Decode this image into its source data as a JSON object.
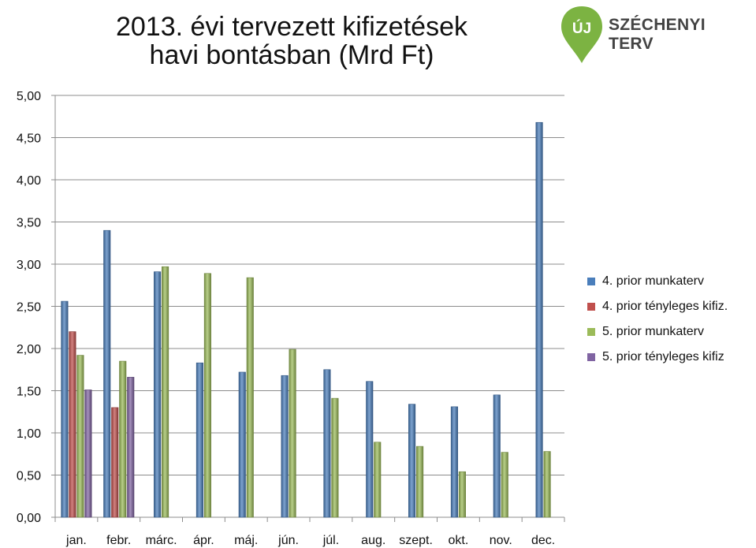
{
  "title_line1": "2013. évi tervezett kifizetések",
  "title_line2": "havi bontásban (Mrd Ft)",
  "logo": {
    "mark": "ÚJ",
    "text": "SZÉCHENYI TERV",
    "color": "#7cb342"
  },
  "chart_data": {
    "type": "bar",
    "categories": [
      "jan.",
      "febr.",
      "márc.",
      "ápr.",
      "máj.",
      "jún.",
      "júl.",
      "aug.",
      "szept.",
      "okt.",
      "nov.",
      "dec."
    ],
    "series": [
      {
        "name": "4. prior munkaterv",
        "color": "#4a7ebb",
        "values": [
          2.56,
          3.4,
          2.91,
          1.83,
          1.72,
          1.68,
          1.75,
          1.61,
          1.34,
          1.31,
          1.45,
          4.68
        ]
      },
      {
        "name": "4. prior tényleges kifiz.",
        "color": "#c0504d",
        "values": [
          2.2,
          1.3,
          null,
          null,
          null,
          null,
          null,
          null,
          null,
          null,
          null,
          null
        ]
      },
      {
        "name": "5. prior munkaterv",
        "color": "#9bbb59",
        "values": [
          1.92,
          1.85,
          2.97,
          2.89,
          2.84,
          1.99,
          1.41,
          0.89,
          0.84,
          0.54,
          0.77,
          0.78
        ]
      },
      {
        "name": "5. prior tényleges kifiz",
        "color": "#8064a2",
        "values": [
          1.51,
          1.66,
          null,
          null,
          null,
          null,
          null,
          null,
          null,
          null,
          null,
          null
        ]
      }
    ],
    "yticks": [
      "0,00",
      "0,50",
      "1,00",
      "1,50",
      "2,00",
      "2,50",
      "3,00",
      "3,50",
      "4,00",
      "4,50",
      "5,00"
    ],
    "ylim": [
      0,
      5
    ],
    "grid": true,
    "legend_position": "right"
  }
}
